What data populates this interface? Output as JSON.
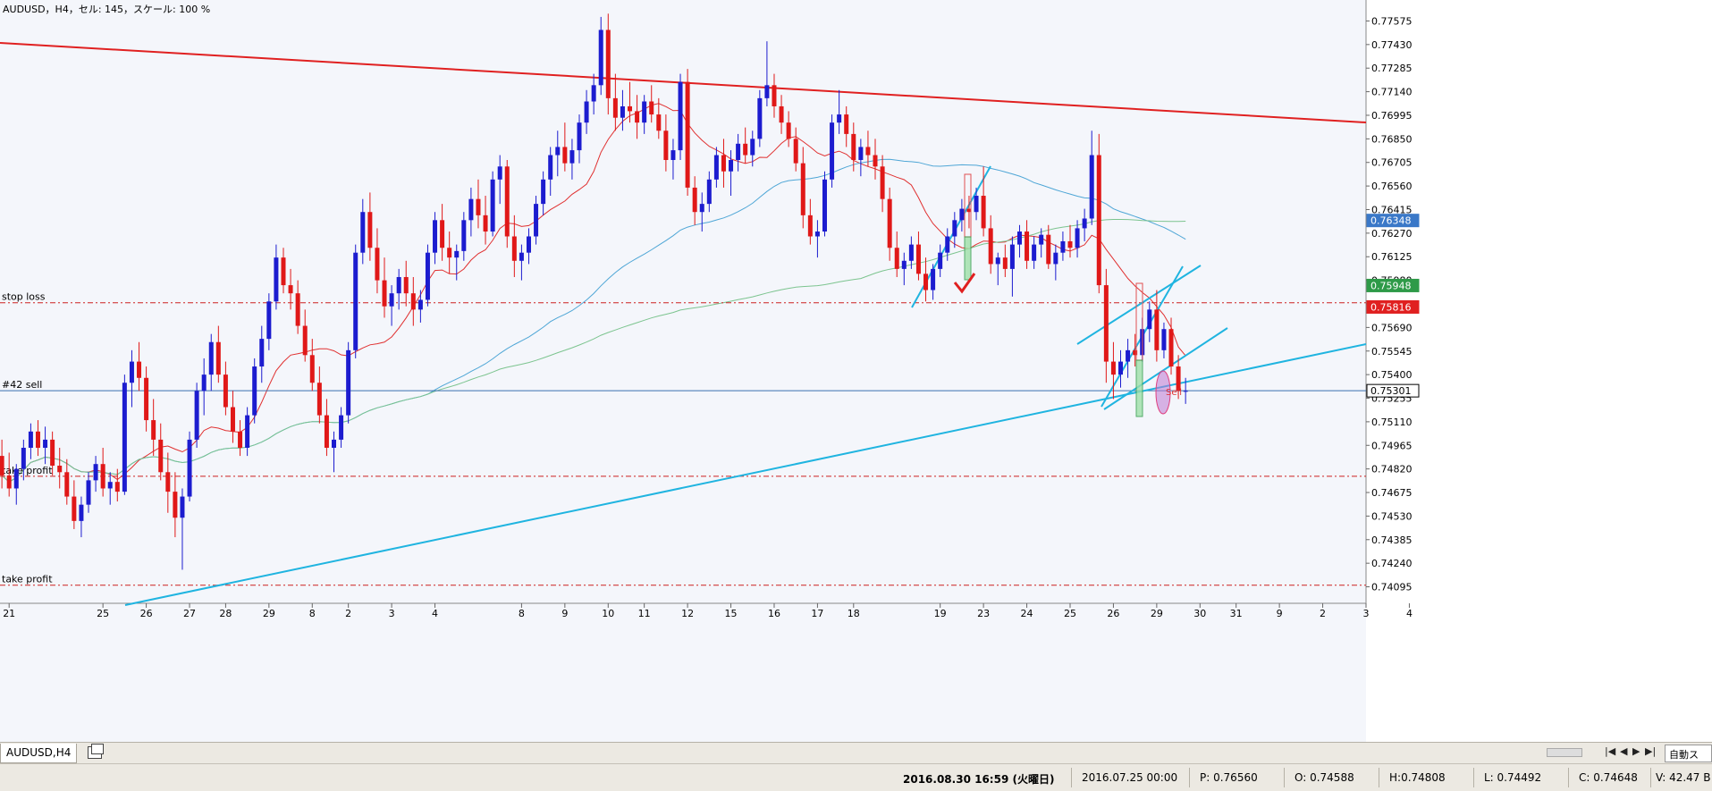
{
  "window": {
    "chart_info": "AUDUSD，H4，セル: 145，スケール: 100 %"
  },
  "chart_data": {
    "type": "candlestick",
    "symbol": "AUDUSD",
    "timeframe": "H4",
    "ylim": [
      0.7401,
      0.7766
    ],
    "y_ticks": [
      0.77575,
      0.7743,
      0.77285,
      0.7714,
      0.76995,
      0.7685,
      0.76705,
      0.7656,
      0.76415,
      0.7627,
      0.76125,
      0.7598,
      0.75835,
      0.7569,
      0.75545,
      0.754,
      0.75255,
      0.7511,
      0.74965,
      0.7482,
      0.74675,
      0.7453,
      0.74385,
      0.7424,
      0.74095
    ],
    "y_tick_labels": [
      "0.77575",
      "0.77430",
      "0.77285",
      "0.77140",
      "0.76995",
      "0.76850",
      "0.76705",
      "0.76560",
      "0.76415",
      "0.76270",
      "0.76125",
      "0.75980",
      "0.75835",
      "0.75690",
      "0.75545",
      "0.75400",
      "0.75255",
      "0.75110",
      "0.74965",
      "0.74820",
      "0.74675",
      "0.74530",
      "0.74385",
      "0.74240",
      "0.74095"
    ],
    "x_ticks": [
      {
        "label": "21",
        "i": 1
      },
      {
        "label": "25",
        "i": 14
      },
      {
        "label": "26",
        "i": 20
      },
      {
        "label": "27",
        "i": 26
      },
      {
        "label": "28",
        "i": 31
      },
      {
        "label": "29",
        "i": 37
      },
      {
        "label": "8",
        "i": 43
      },
      {
        "label": "2",
        "i": 48
      },
      {
        "label": "3",
        "i": 54
      },
      {
        "label": "4",
        "i": 60
      },
      {
        "label": "8",
        "i": 72
      },
      {
        "label": "9",
        "i": 78
      },
      {
        "label": "10",
        "i": 84
      },
      {
        "label": "11",
        "i": 89
      },
      {
        "label": "12",
        "i": 95
      },
      {
        "label": "15",
        "i": 101
      },
      {
        "label": "16",
        "i": 107
      },
      {
        "label": "17",
        "i": 113
      },
      {
        "label": "18",
        "i": 118
      },
      {
        "label": "19",
        "i": 130
      },
      {
        "label": "23",
        "i": 136
      },
      {
        "label": "24",
        "i": 142
      },
      {
        "label": "25",
        "i": 148
      },
      {
        "label": "26",
        "i": 154
      },
      {
        "label": "29",
        "i": 160
      },
      {
        "label": "30",
        "i": 166
      },
      {
        "label": "31",
        "i": 171
      },
      {
        "label": "9",
        "i": 177
      },
      {
        "label": "2",
        "i": 183
      },
      {
        "label": "3",
        "i": 189
      },
      {
        "label": "4",
        "i": 195
      }
    ],
    "candles": [
      [
        0.749,
        0.75,
        0.747,
        0.7478
      ],
      [
        0.7478,
        0.7492,
        0.7465,
        0.747
      ],
      [
        0.747,
        0.7485,
        0.746,
        0.7482
      ],
      [
        0.7482,
        0.75,
        0.7475,
        0.7495
      ],
      [
        0.7495,
        0.751,
        0.7488,
        0.7505
      ],
      [
        0.7505,
        0.7512,
        0.749,
        0.7495
      ],
      [
        0.7495,
        0.7508,
        0.7485,
        0.75
      ],
      [
        0.75,
        0.7505,
        0.7478,
        0.7484
      ],
      [
        0.7484,
        0.7495,
        0.747,
        0.748
      ],
      [
        0.748,
        0.7488,
        0.746,
        0.7465
      ],
      [
        0.7465,
        0.7475,
        0.7445,
        0.745
      ],
      [
        0.745,
        0.7465,
        0.744,
        0.746
      ],
      [
        0.746,
        0.748,
        0.7455,
        0.7475
      ],
      [
        0.7475,
        0.749,
        0.7468,
        0.7485
      ],
      [
        0.7485,
        0.7495,
        0.7465,
        0.747
      ],
      [
        0.747,
        0.748,
        0.746,
        0.7474
      ],
      [
        0.7474,
        0.7482,
        0.7462,
        0.7468
      ],
      [
        0.7468,
        0.754,
        0.7466,
        0.7535
      ],
      [
        0.7535,
        0.7555,
        0.752,
        0.7548
      ],
      [
        0.7548,
        0.756,
        0.753,
        0.7538
      ],
      [
        0.7538,
        0.7545,
        0.7505,
        0.7512
      ],
      [
        0.7512,
        0.7525,
        0.749,
        0.75
      ],
      [
        0.75,
        0.751,
        0.7475,
        0.748
      ],
      [
        0.748,
        0.7492,
        0.7455,
        0.7468
      ],
      [
        0.7468,
        0.748,
        0.744,
        0.7452
      ],
      [
        0.7452,
        0.747,
        0.742,
        0.7465
      ],
      [
        0.7465,
        0.7505,
        0.7462,
        0.75
      ],
      [
        0.75,
        0.7535,
        0.7495,
        0.753
      ],
      [
        0.753,
        0.755,
        0.7515,
        0.754
      ],
      [
        0.754,
        0.7565,
        0.753,
        0.756
      ],
      [
        0.756,
        0.757,
        0.7535,
        0.754
      ],
      [
        0.754,
        0.7548,
        0.7515,
        0.752
      ],
      [
        0.752,
        0.753,
        0.7498,
        0.7505
      ],
      [
        0.7505,
        0.7512,
        0.749,
        0.7495
      ],
      [
        0.7495,
        0.752,
        0.749,
        0.7515
      ],
      [
        0.7515,
        0.755,
        0.751,
        0.7545
      ],
      [
        0.7545,
        0.757,
        0.7535,
        0.7562
      ],
      [
        0.7562,
        0.759,
        0.7555,
        0.7585
      ],
      [
        0.7585,
        0.762,
        0.758,
        0.7612
      ],
      [
        0.7612,
        0.7618,
        0.759,
        0.7595
      ],
      [
        0.7595,
        0.7605,
        0.758,
        0.759
      ],
      [
        0.759,
        0.7598,
        0.7565,
        0.757
      ],
      [
        0.757,
        0.758,
        0.7548,
        0.7552
      ],
      [
        0.7552,
        0.7562,
        0.753,
        0.7535
      ],
      [
        0.7535,
        0.7545,
        0.751,
        0.7515
      ],
      [
        0.7515,
        0.7525,
        0.749,
        0.7495
      ],
      [
        0.7495,
        0.7505,
        0.748,
        0.75
      ],
      [
        0.75,
        0.752,
        0.7495,
        0.7515
      ],
      [
        0.7515,
        0.756,
        0.751,
        0.7555
      ],
      [
        0.7555,
        0.762,
        0.755,
        0.7615
      ],
      [
        0.7615,
        0.7648,
        0.7608,
        0.764
      ],
      [
        0.764,
        0.7652,
        0.761,
        0.7618
      ],
      [
        0.7618,
        0.763,
        0.759,
        0.7598
      ],
      [
        0.7598,
        0.7612,
        0.7575,
        0.7582
      ],
      [
        0.7582,
        0.7595,
        0.757,
        0.759
      ],
      [
        0.759,
        0.7605,
        0.758,
        0.76
      ],
      [
        0.76,
        0.761,
        0.7582,
        0.759
      ],
      [
        0.759,
        0.76,
        0.757,
        0.758
      ],
      [
        0.758,
        0.7592,
        0.7572,
        0.7586
      ],
      [
        0.7586,
        0.762,
        0.7582,
        0.7615
      ],
      [
        0.7615,
        0.764,
        0.7608,
        0.7635
      ],
      [
        0.7635,
        0.7645,
        0.761,
        0.7618
      ],
      [
        0.7618,
        0.7628,
        0.7602,
        0.7612
      ],
      [
        0.7612,
        0.762,
        0.7598,
        0.7616
      ],
      [
        0.7616,
        0.764,
        0.761,
        0.7635
      ],
      [
        0.7635,
        0.7655,
        0.7625,
        0.7648
      ],
      [
        0.7648,
        0.766,
        0.763,
        0.7638
      ],
      [
        0.7638,
        0.765,
        0.762,
        0.7628
      ],
      [
        0.7628,
        0.7665,
        0.7625,
        0.766
      ],
      [
        0.766,
        0.7675,
        0.7645,
        0.7668
      ],
      [
        0.7668,
        0.7672,
        0.7618,
        0.7625
      ],
      [
        0.7625,
        0.7638,
        0.76,
        0.761
      ],
      [
        0.761,
        0.762,
        0.7598,
        0.7615
      ],
      [
        0.7615,
        0.763,
        0.7608,
        0.7625
      ],
      [
        0.7625,
        0.765,
        0.762,
        0.7645
      ],
      [
        0.7645,
        0.7665,
        0.7638,
        0.766
      ],
      [
        0.766,
        0.768,
        0.765,
        0.7675
      ],
      [
        0.7675,
        0.769,
        0.7662,
        0.768
      ],
      [
        0.768,
        0.7695,
        0.7665,
        0.767
      ],
      [
        0.767,
        0.7685,
        0.766,
        0.7678
      ],
      [
        0.7678,
        0.77,
        0.767,
        0.7695
      ],
      [
        0.7695,
        0.7715,
        0.7688,
        0.7708
      ],
      [
        0.7708,
        0.7725,
        0.77,
        0.7718
      ],
      [
        0.7718,
        0.776,
        0.7712,
        0.7752
      ],
      [
        0.7752,
        0.7762,
        0.77,
        0.771
      ],
      [
        0.771,
        0.7725,
        0.769,
        0.7698
      ],
      [
        0.7698,
        0.7715,
        0.769,
        0.7705
      ],
      [
        0.7705,
        0.772,
        0.7695,
        0.7702
      ],
      [
        0.7702,
        0.7712,
        0.7685,
        0.7695
      ],
      [
        0.7695,
        0.7712,
        0.7688,
        0.7708
      ],
      [
        0.7708,
        0.7718,
        0.7695,
        0.77
      ],
      [
        0.77,
        0.771,
        0.7685,
        0.769
      ],
      [
        0.769,
        0.77,
        0.7665,
        0.7672
      ],
      [
        0.7672,
        0.7685,
        0.766,
        0.7678
      ],
      [
        0.7678,
        0.7725,
        0.7672,
        0.772
      ],
      [
        0.772,
        0.7728,
        0.765,
        0.7655
      ],
      [
        0.7655,
        0.7662,
        0.7632,
        0.764
      ],
      [
        0.764,
        0.7652,
        0.7628,
        0.7645
      ],
      [
        0.7645,
        0.7665,
        0.764,
        0.766
      ],
      [
        0.766,
        0.768,
        0.7655,
        0.7675
      ],
      [
        0.7675,
        0.7685,
        0.7655,
        0.7665
      ],
      [
        0.7665,
        0.7678,
        0.765,
        0.7672
      ],
      [
        0.7672,
        0.7688,
        0.7665,
        0.7682
      ],
      [
        0.7682,
        0.7692,
        0.767,
        0.7675
      ],
      [
        0.7675,
        0.769,
        0.7668,
        0.7685
      ],
      [
        0.7685,
        0.7715,
        0.768,
        0.771
      ],
      [
        0.771,
        0.7745,
        0.7705,
        0.7718
      ],
      [
        0.7718,
        0.7725,
        0.7698,
        0.7705
      ],
      [
        0.7705,
        0.7712,
        0.7688,
        0.7695
      ],
      [
        0.7695,
        0.7702,
        0.768,
        0.7685
      ],
      [
        0.7685,
        0.7692,
        0.7665,
        0.767
      ],
      [
        0.767,
        0.768,
        0.763,
        0.7638
      ],
      [
        0.7638,
        0.7648,
        0.762,
        0.7625
      ],
      [
        0.7625,
        0.7635,
        0.7612,
        0.7628
      ],
      [
        0.7628,
        0.7665,
        0.7625,
        0.766
      ],
      [
        0.766,
        0.77,
        0.7655,
        0.7695
      ],
      [
        0.7695,
        0.7715,
        0.7688,
        0.77
      ],
      [
        0.77,
        0.7705,
        0.768,
        0.7688
      ],
      [
        0.7688,
        0.7695,
        0.7665,
        0.7672
      ],
      [
        0.7672,
        0.7685,
        0.7662,
        0.768
      ],
      [
        0.768,
        0.769,
        0.7668,
        0.7675
      ],
      [
        0.7675,
        0.7685,
        0.766,
        0.7668
      ],
      [
        0.7668,
        0.7675,
        0.764,
        0.7648
      ],
      [
        0.7648,
        0.7655,
        0.761,
        0.7618
      ],
      [
        0.7618,
        0.7628,
        0.76,
        0.7605
      ],
      [
        0.7605,
        0.7615,
        0.7595,
        0.761
      ],
      [
        0.761,
        0.7625,
        0.7605,
        0.762
      ],
      [
        0.762,
        0.7628,
        0.7598,
        0.7602
      ],
      [
        0.7602,
        0.7612,
        0.7585,
        0.7592
      ],
      [
        0.7592,
        0.7608,
        0.7586,
        0.7605
      ],
      [
        0.7605,
        0.762,
        0.76,
        0.7615
      ],
      [
        0.7615,
        0.763,
        0.761,
        0.7625
      ],
      [
        0.7625,
        0.764,
        0.7618,
        0.7635
      ],
      [
        0.7635,
        0.7648,
        0.7628,
        0.7642
      ],
      [
        0.7642,
        0.765,
        0.763,
        0.764
      ],
      [
        0.764,
        0.7655,
        0.7635,
        0.765
      ],
      [
        0.765,
        0.7668,
        0.7625,
        0.763
      ],
      [
        0.763,
        0.7638,
        0.7602,
        0.7608
      ],
      [
        0.7608,
        0.7615,
        0.7595,
        0.7612
      ],
      [
        0.7612,
        0.762,
        0.76,
        0.7605
      ],
      [
        0.7605,
        0.7625,
        0.7588,
        0.762
      ],
      [
        0.762,
        0.7632,
        0.7612,
        0.7628
      ],
      [
        0.7628,
        0.7635,
        0.7605,
        0.761
      ],
      [
        0.761,
        0.7625,
        0.7605,
        0.762
      ],
      [
        0.762,
        0.763,
        0.7612,
        0.7626
      ],
      [
        0.7626,
        0.7632,
        0.7605,
        0.7608
      ],
      [
        0.7608,
        0.762,
        0.7598,
        0.7615
      ],
      [
        0.7615,
        0.7628,
        0.761,
        0.7622
      ],
      [
        0.7622,
        0.7632,
        0.7612,
        0.7618
      ],
      [
        0.7618,
        0.7635,
        0.7612,
        0.763
      ],
      [
        0.763,
        0.7642,
        0.7622,
        0.7636
      ],
      [
        0.7636,
        0.769,
        0.7632,
        0.7675
      ],
      [
        0.7675,
        0.7688,
        0.759,
        0.7595
      ],
      [
        0.7595,
        0.7605,
        0.7535,
        0.7548
      ],
      [
        0.7548,
        0.756,
        0.7525,
        0.754
      ],
      [
        0.754,
        0.7555,
        0.7532,
        0.7548
      ],
      [
        0.7548,
        0.7562,
        0.7538,
        0.7555
      ],
      [
        0.7555,
        0.7565,
        0.7545,
        0.7552
      ],
      [
        0.7552,
        0.7575,
        0.7548,
        0.7568
      ],
      [
        0.7568,
        0.7585,
        0.756,
        0.758
      ],
      [
        0.758,
        0.7592,
        0.7548,
        0.7555
      ],
      [
        0.7555,
        0.7572,
        0.755,
        0.7568
      ],
      [
        0.7568,
        0.7575,
        0.754,
        0.7545
      ],
      [
        0.7545,
        0.7552,
        0.7525,
        0.753
      ],
      [
        0.753,
        0.7538,
        0.7522,
        0.753
      ]
    ],
    "moving_averages": [
      {
        "name": "ma-red",
        "color": "#e03030"
      },
      {
        "name": "ma-blue",
        "color": "#4ea6d6"
      },
      {
        "name": "ma-green",
        "color": "#7cc48f"
      }
    ],
    "horizontal_lines": [
      {
        "name": "stop-loss",
        "label": "stop loss",
        "price": 0.75842,
        "color": "#cc2020",
        "dash": true
      },
      {
        "name": "sell-42",
        "label": "#42 sell",
        "price": 0.75301,
        "color": "#3a6fb0",
        "dash": false
      },
      {
        "name": "take-profit-1",
        "label": "take profit",
        "price": 0.74775,
        "color": "#cc2020",
        "dash": true
      },
      {
        "name": "take-profit-2",
        "label": "take profit",
        "price": 0.74105,
        "color": "#cc2020",
        "dash": true
      }
    ],
    "price_badges": [
      {
        "name": "price-badge-blue",
        "price": 0.76348,
        "label": "0.76348",
        "bg": "#3a78c8",
        "fg": "#ffffff"
      },
      {
        "name": "price-badge-green",
        "price": 0.75948,
        "label": "0.75948",
        "bg": "#2e9a48",
        "fg": "#ffffff"
      },
      {
        "name": "price-badge-red",
        "price": 0.75816,
        "label": "0.75816",
        "bg": "#e02020",
        "fg": "#ffffff"
      },
      {
        "name": "price-badge-current",
        "price": 0.75301,
        "label": "0.75301",
        "bg": "#ffffff",
        "fg": "#000000"
      }
    ],
    "sell_marker": {
      "label": "Sell",
      "color": "#e03030"
    }
  },
  "tabs": [
    {
      "label": "AUDUSD,H4"
    }
  ],
  "right_button": "自動スー",
  "status": {
    "datetime": "2016.08.30 16:59 (火曜日)",
    "date": "2016.07.25 00:00",
    "p": "P: 0.76560",
    "o": "O: 0.74588",
    "h": "H:0.74808",
    "l": "L: 0.74492",
    "c": "C: 0.74648",
    "v": "V: 42.47 B"
  }
}
